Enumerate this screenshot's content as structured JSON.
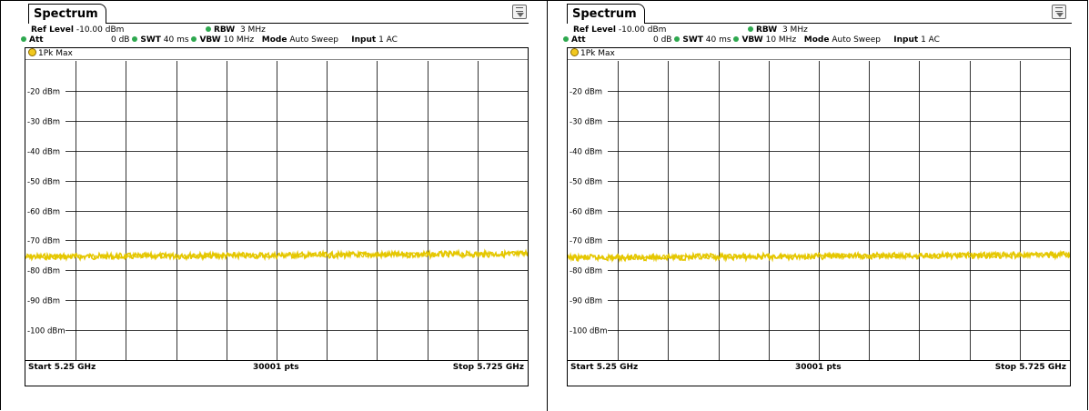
{
  "panels": [
    {
      "tab_label": "Spectrum",
      "ref_level_label": "Ref Level",
      "ref_level_value": "-10.00 dBm",
      "att_label": "Att",
      "att_value": "0 dB",
      "swt_label": "SWT",
      "swt_value": "40 ms",
      "rbw_label": "RBW",
      "rbw_value": "3 MHz",
      "vbw_label": "VBW",
      "vbw_value": "10 MHz",
      "mode_label": "Mode",
      "mode_value": "Auto Sweep",
      "input_label": "Input",
      "input_value": "1 AC",
      "trace_label": "1Pk Max",
      "y_ticks": [
        "-20 dBm",
        "-30 dBm",
        "-40 dBm",
        "-50 dBm",
        "-60 dBm",
        "-70 dBm",
        "-80 dBm",
        "-90 dBm",
        "-100 dBm"
      ],
      "start_label": "Start 5.25 GHz",
      "points_label": "30001 pts",
      "stop_label": "Stop 5.725 GHz",
      "trace_level_dbm": -75.5,
      "trace_color": "#e5c700"
    },
    {
      "tab_label": "Spectrum",
      "ref_level_label": "Ref Level",
      "ref_level_value": "-10.00 dBm",
      "att_label": "Att",
      "att_value": "0 dB",
      "swt_label": "SWT",
      "swt_value": "40 ms",
      "rbw_label": "RBW",
      "rbw_value": "3 MHz",
      "vbw_label": "VBW",
      "vbw_value": "10 MHz",
      "mode_label": "Mode",
      "mode_value": "Auto Sweep",
      "input_label": "Input",
      "input_value": "1 AC",
      "trace_label": "1Pk Max",
      "y_ticks": [
        "-20 dBm",
        "-30 dBm",
        "-40 dBm",
        "-50 dBm",
        "-60 dBm",
        "-70 dBm",
        "-80 dBm",
        "-90 dBm",
        "-100 dBm"
      ],
      "start_label": "Start 5.25 GHz",
      "points_label": "30001 pts",
      "stop_label": "Stop 5.725 GHz",
      "trace_level_dbm": -75.8,
      "trace_color": "#e5c700"
    }
  ],
  "colors": {
    "indicator_green": "#2ea84f",
    "trace_dot": "#f2c81e",
    "grid": "#000000"
  },
  "chart_data": [
    {
      "type": "line",
      "title": "",
      "xlabel": "",
      "ylabel": "",
      "x_range": [
        "5.25 GHz",
        "5.725 GHz"
      ],
      "ylim": [
        -110,
        -10
      ],
      "y_unit": "dBm",
      "grid": true,
      "series": [
        {
          "name": "1Pk Max",
          "level": -75.5
        }
      ]
    },
    {
      "type": "line",
      "title": "",
      "xlabel": "",
      "ylabel": "",
      "x_range": [
        "5.25 GHz",
        "5.725 GHz"
      ],
      "ylim": [
        -110,
        -10
      ],
      "y_unit": "dBm",
      "grid": true,
      "series": [
        {
          "name": "1Pk Max",
          "level": -75.8
        }
      ]
    }
  ]
}
